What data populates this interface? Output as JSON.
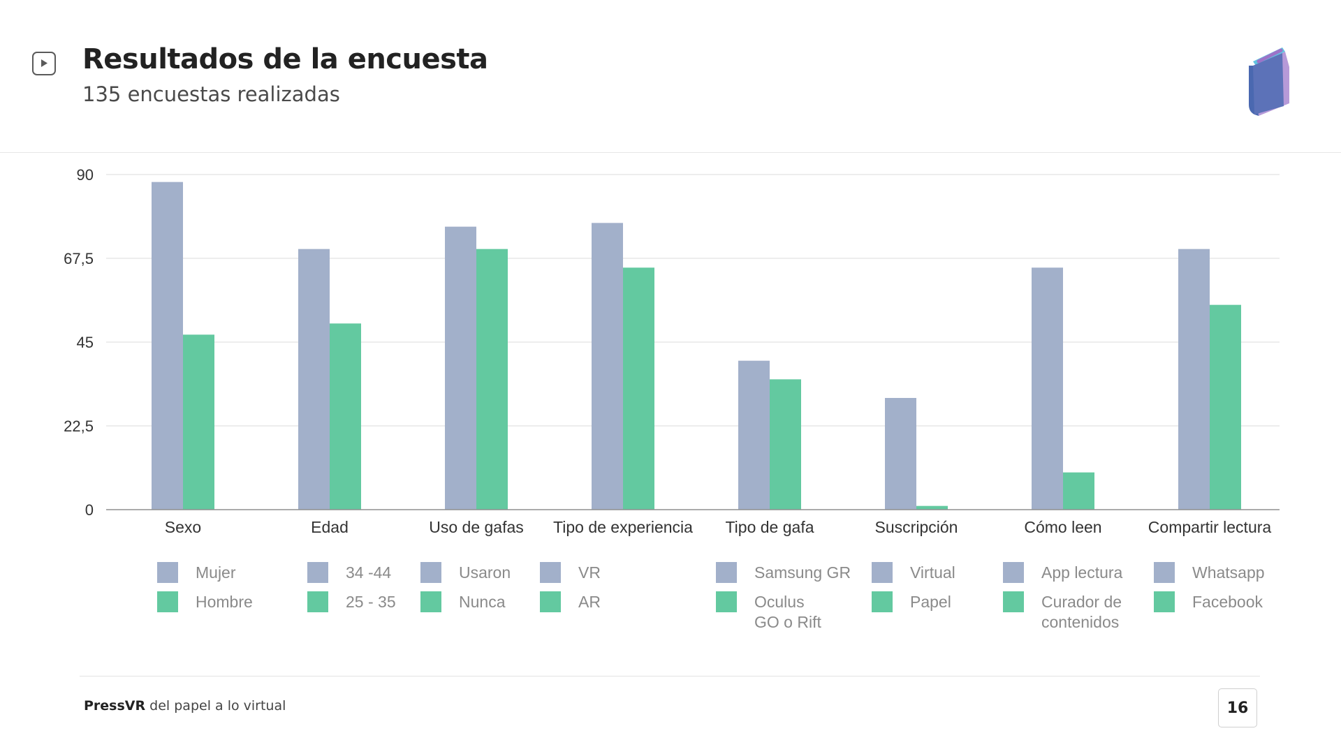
{
  "header": {
    "title": "Resultados de la encuesta",
    "subtitle": "135 encuestas realizadas"
  },
  "icons": {
    "play": "play-icon",
    "logo": "book-logo-icon"
  },
  "footer": {
    "brand": "PressVR",
    "tagline": " del papel a lo virtual",
    "page_number": "16"
  },
  "colors": {
    "series_1": "#a2b0ca",
    "series_2": "#63c9a0",
    "grid": "#e2e2e2",
    "axis": "#8f8f8f",
    "tick_text": "#333333",
    "legend_text": "#8a8a8a"
  },
  "chart_data": {
    "type": "bar",
    "title": "",
    "xlabel": "",
    "ylabel": "",
    "ylim": [
      0,
      90
    ],
    "yticks": [
      "0",
      "22,5",
      "45",
      "67,5",
      "90"
    ],
    "grid": true,
    "categories": [
      "Sexo",
      "Edad",
      "Uso de gafas",
      "Tipo de experiencia",
      "Tipo de gafa",
      "Suscripción",
      "Cómo leen",
      "Compartir lectura"
    ],
    "series": [
      {
        "values": [
          88,
          70,
          76,
          77,
          40,
          30,
          65,
          70
        ]
      },
      {
        "values": [
          47,
          50,
          70,
          65,
          35,
          1,
          10,
          55
        ]
      }
    ],
    "legends": [
      {
        "category": "Sexo",
        "items": [
          [
            "Mujer"
          ],
          [
            "Hombre"
          ]
        ]
      },
      {
        "category": "Edad",
        "items": [
          [
            "34 -44"
          ],
          [
            "25 - 35"
          ]
        ]
      },
      {
        "category": "Uso de gafas",
        "items": [
          [
            "Usaron"
          ],
          [
            "Nunca"
          ]
        ]
      },
      {
        "category": "Tipo de experiencia",
        "items": [
          [
            "VR"
          ],
          [
            "AR"
          ]
        ]
      },
      {
        "category": "Tipo de gafa",
        "items": [
          [
            "Samsung GR"
          ],
          [
            "Oculus",
            "GO o Rift"
          ]
        ]
      },
      {
        "category": "Suscripción",
        "items": [
          [
            "Virtual"
          ],
          [
            "Papel"
          ]
        ]
      },
      {
        "category": "Cómo leen",
        "items": [
          [
            "App lectura"
          ],
          [
            "Curador de",
            "contenidos"
          ]
        ]
      },
      {
        "category": "Compartir lectura",
        "items": [
          [
            "Whatsapp"
          ],
          [
            "Facebook"
          ]
        ]
      }
    ]
  }
}
